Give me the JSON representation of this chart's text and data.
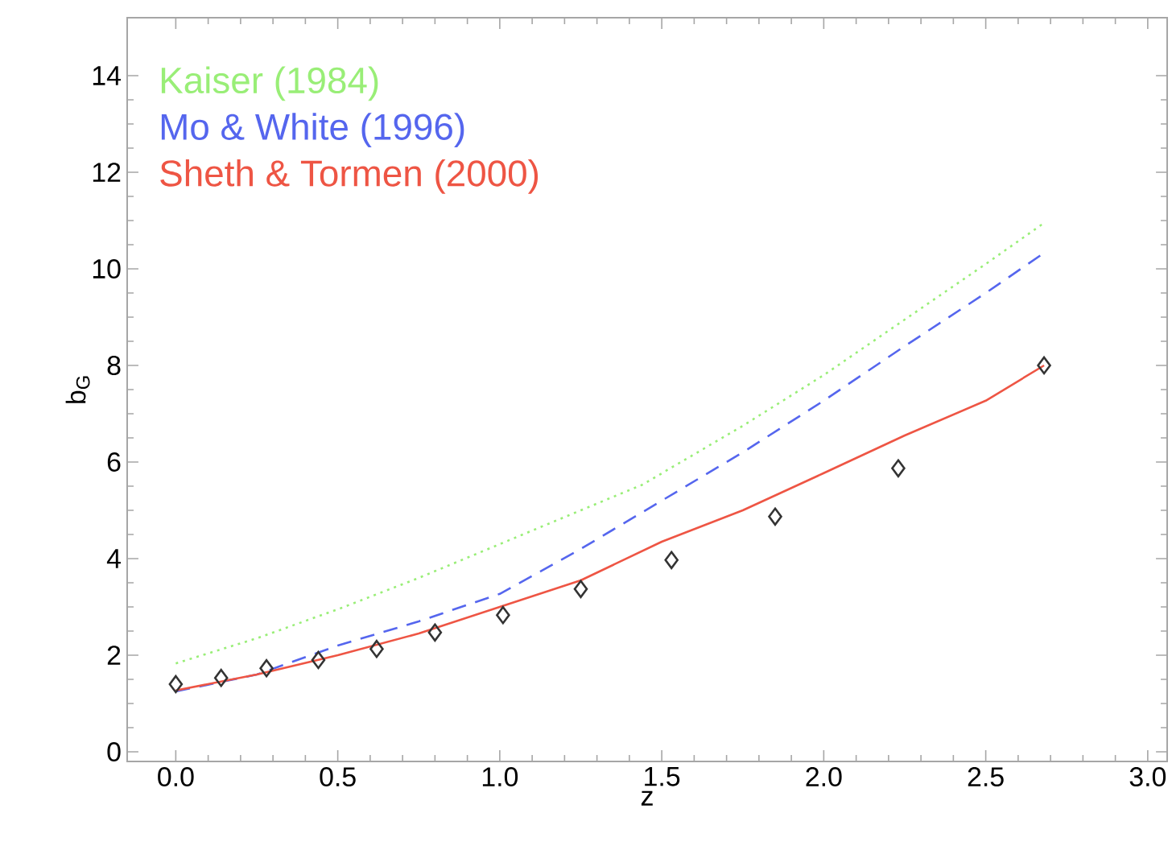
{
  "chart_data": {
    "type": "line",
    "xlabel": "z",
    "ylabel": "b$_{G}$",
    "xlim": [
      -0.15,
      3.06
    ],
    "ylim": [
      -0.2,
      15.2
    ],
    "xticks": [
      {
        "value": 0,
        "label": "0.0"
      },
      {
        "value": 0.5,
        "label": "0.5"
      },
      {
        "value": 1,
        "label": "1.0"
      },
      {
        "value": 1.5,
        "label": "1.5"
      },
      {
        "value": 2,
        "label": "2.0"
      },
      {
        "value": 2.5,
        "label": "2.5"
      },
      {
        "value": 3,
        "label": "3.0"
      }
    ],
    "yticks": [
      0,
      2,
      4,
      6,
      8,
      10,
      12,
      14
    ],
    "grid": false,
    "legend": "top left",
    "series": [
      {
        "name": "Kaiser (1984)",
        "color": "#99ee77",
        "line_style": "dotted",
        "x": [
          0,
          0.25,
          0.5,
          0.75,
          1.0,
          1.25,
          1.44,
          1.75,
          2.0,
          2.25,
          2.5,
          2.68
        ],
        "values": [
          1.83,
          2.35,
          2.95,
          3.6,
          4.3,
          5.0,
          5.53,
          6.75,
          7.8,
          8.95,
          10.1,
          10.95
        ]
      },
      {
        "name": "Mo & White (1996)",
        "color": "#5566ee",
        "line_style": "dashed",
        "x": [
          0,
          0.25,
          0.5,
          0.75,
          1.0,
          1.25,
          1.5,
          1.75,
          2.0,
          2.25,
          2.5,
          2.68
        ],
        "values": [
          1.25,
          1.6,
          2.2,
          2.7,
          3.27,
          4.2,
          5.2,
          6.2,
          7.27,
          8.4,
          9.5,
          10.33
        ]
      },
      {
        "name": "Sheth & Tormen (2000)",
        "color": "#ee5544",
        "line_style": "solid",
        "x": [
          0,
          0.25,
          0.5,
          0.75,
          1.0,
          1.25,
          1.5,
          1.75,
          2.0,
          2.25,
          2.5,
          2.68
        ],
        "values": [
          1.27,
          1.6,
          2.0,
          2.45,
          3.0,
          3.55,
          4.35,
          5.0,
          5.77,
          6.55,
          7.27,
          8.0
        ]
      },
      {
        "type": "scatter",
        "color": "#333333",
        "marker": "diamond",
        "x": [
          0,
          0.14,
          0.28,
          0.44,
          0.62,
          0.8,
          1.01,
          1.25,
          1.53,
          1.85,
          2.23,
          2.68
        ],
        "values": [
          1.4,
          1.53,
          1.73,
          1.9,
          2.13,
          2.47,
          2.83,
          3.37,
          3.97,
          4.87,
          5.87,
          8.0
        ]
      }
    ]
  }
}
